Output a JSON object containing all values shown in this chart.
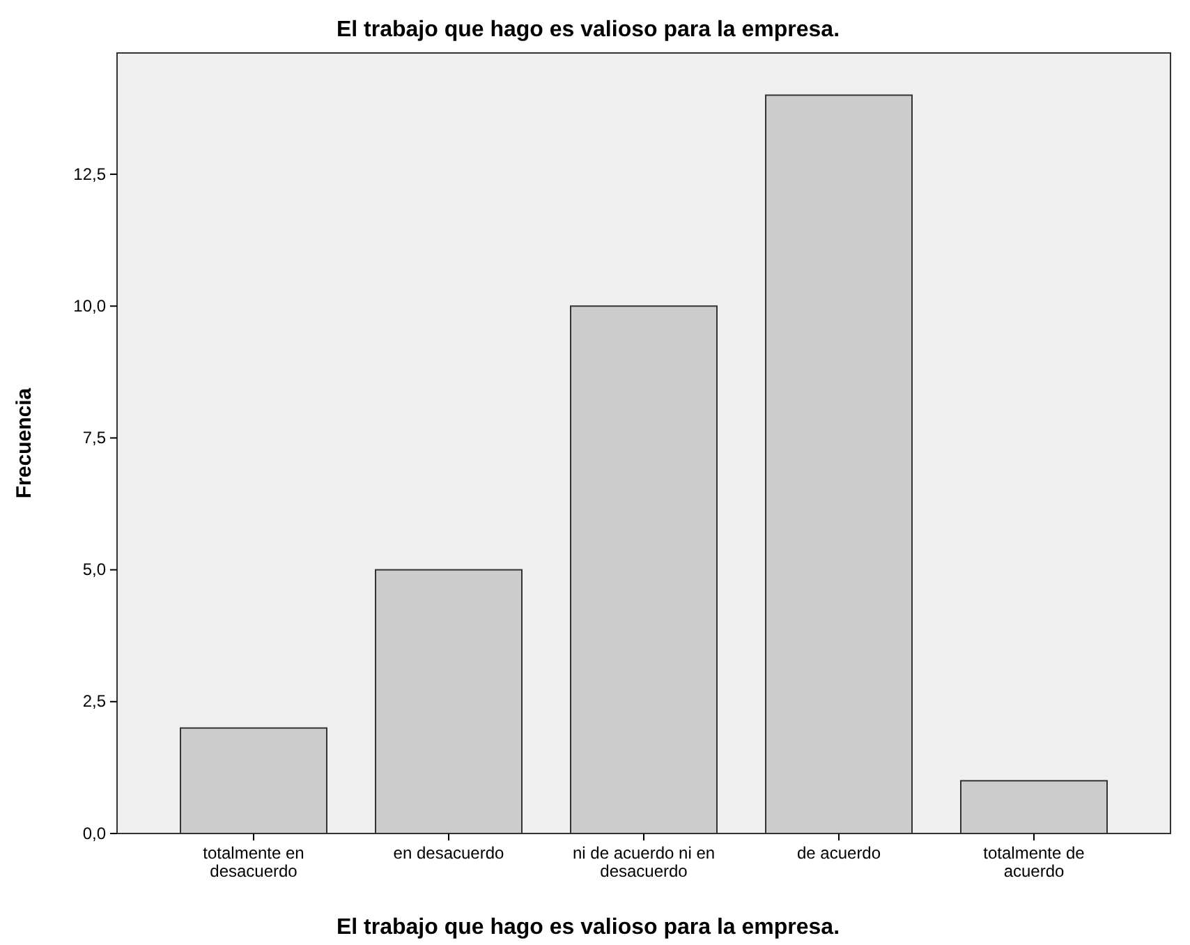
{
  "chart_data": {
    "type": "bar",
    "title": "El trabajo que hago es valioso para la empresa.",
    "xlabel": "El trabajo que hago es valioso para la empresa.",
    "ylabel": "Frecuencia",
    "categories": [
      "totalmente en desacuerdo",
      "en desacuerdo",
      "ni de acuerdo ni en desacuerdo",
      "de acuerdo",
      "totalmente de acuerdo"
    ],
    "values": [
      2,
      5,
      10,
      14,
      1
    ],
    "color": "#cccccc",
    "ylim": [
      0,
      14.8
    ],
    "yticks": [
      {
        "value": 0,
        "label": "0,0"
      },
      {
        "value": 2.5,
        "label": "2,5"
      },
      {
        "value": 5,
        "label": "5,0"
      },
      {
        "value": 7.5,
        "label": "7,5"
      },
      {
        "value": 10,
        "label": "10,0"
      },
      {
        "value": 12.5,
        "label": "12,5"
      }
    ],
    "grid": false
  }
}
